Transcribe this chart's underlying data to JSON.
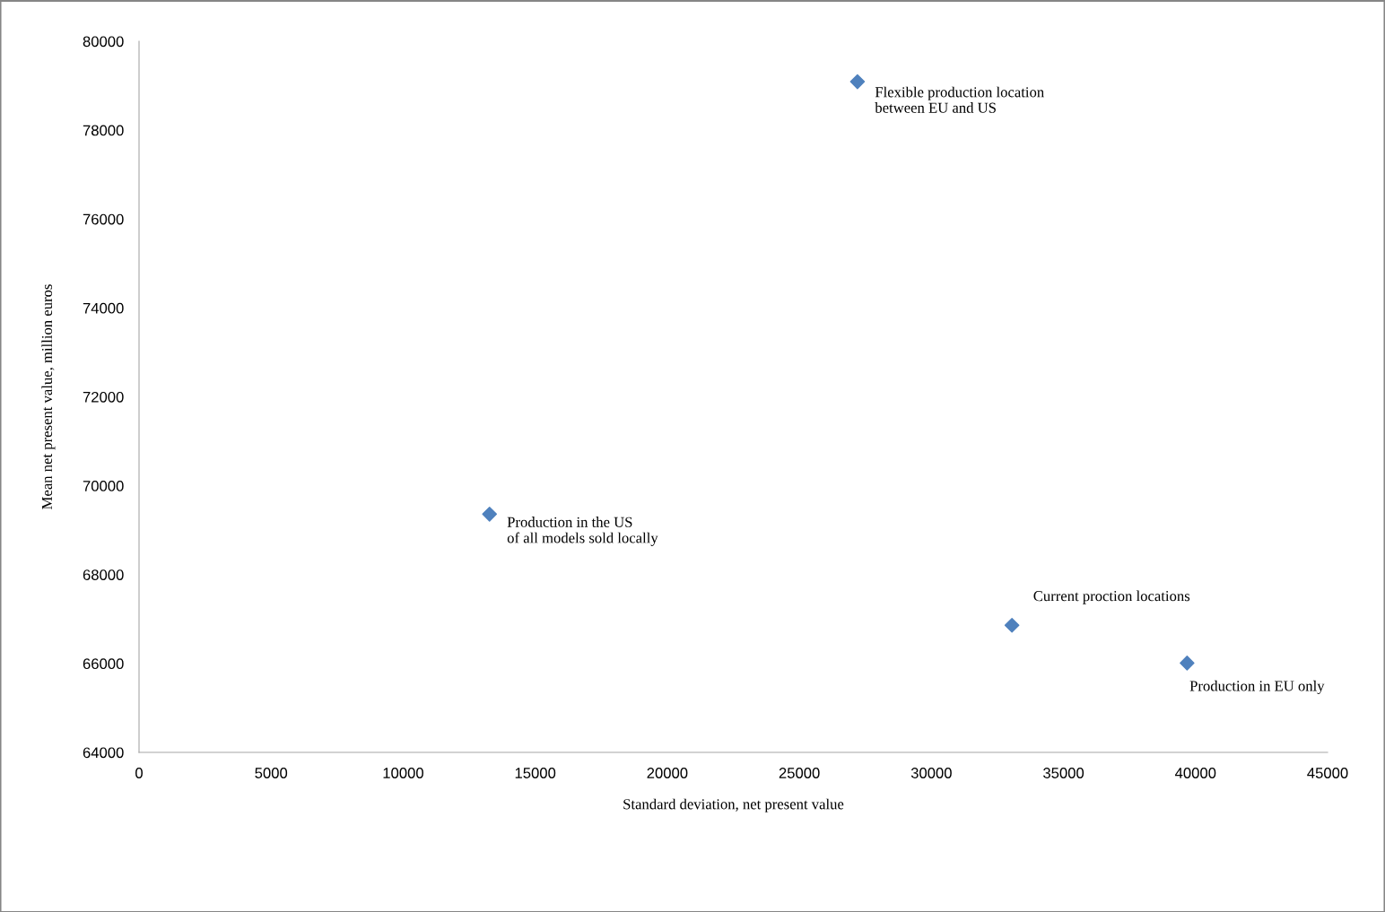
{
  "chart_data": {
    "type": "scatter",
    "xlabel": "Standard deviation, net present value",
    "ylabel": "Mean net present value, million euros",
    "x": [
      13270,
      27200,
      33050,
      39680
    ],
    "series": [
      {
        "color": "#4f81bd",
        "values": [
          69360,
          79090,
          66860,
          66010
        ]
      }
    ],
    "marker": "diamond",
    "grid": false,
    "legend": false,
    "xlim": [
      0,
      45000
    ],
    "xticks": [
      0,
      5000,
      10000,
      15000,
      20000,
      25000,
      30000,
      35000,
      40000,
      45000
    ],
    "ylim": [
      64000,
      80000
    ],
    "yticks": [
      64000,
      66000,
      68000,
      70000,
      72000,
      74000,
      76000,
      78000,
      80000
    ],
    "annotations": [
      {
        "text": "Production in the US\nof all models sold locally",
        "x": 13270,
        "y": 69360
      },
      {
        "text": "Flexible production location\nbetween EU and US",
        "x": 27200,
        "y": 79090
      },
      {
        "text": "Current proction locations",
        "x": 33050,
        "y": 66860
      },
      {
        "text": "Production in EU only",
        "x": 39680,
        "y": 66010
      }
    ]
  }
}
